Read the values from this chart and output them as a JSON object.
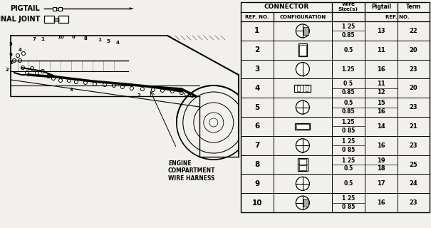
{
  "bg_color": "#f2f0ec",
  "rows": [
    {
      "ref": "1",
      "wire": [
        "1 25",
        "0.85"
      ],
      "pigtail": [
        "13",
        ""
      ],
      "term": "22"
    },
    {
      "ref": "2",
      "wire": [
        "0.5",
        ""
      ],
      "pigtail": [
        "11",
        ""
      ],
      "term": "20"
    },
    {
      "ref": "3",
      "wire": [
        "1.25",
        ""
      ],
      "pigtail": [
        "16",
        ""
      ],
      "term": "23"
    },
    {
      "ref": "4",
      "wire": [
        "0 5",
        "0.85"
      ],
      "pigtail": [
        "11",
        "12"
      ],
      "term": "20"
    },
    {
      "ref": "5",
      "wire": [
        "0.5",
        "0.85"
      ],
      "pigtail": [
        "15",
        "16"
      ],
      "term": "23"
    },
    {
      "ref": "6",
      "wire": [
        "1.25",
        "0 85"
      ],
      "pigtail": [
        "14",
        ""
      ],
      "term": "21"
    },
    {
      "ref": "7",
      "wire": [
        "1 25",
        "0 85"
      ],
      "pigtail": [
        "16",
        ""
      ],
      "term": "23"
    },
    {
      "ref": "8",
      "wire": [
        "1 25",
        "0.5"
      ],
      "pigtail": [
        "19",
        "18"
      ],
      "term": "25"
    },
    {
      "ref": "9",
      "wire": [
        "0.5",
        ""
      ],
      "pigtail": [
        "17",
        ""
      ],
      "term": "24"
    },
    {
      "ref": "10",
      "wire": [
        "1 25",
        "0 85"
      ],
      "pigtail": [
        "16",
        ""
      ],
      "term": "23"
    }
  ],
  "pigtail_label": "PIGTAIL",
  "terminal_joint_label": "TERMINAL JOINT",
  "engine_label": "ENGINE\nCOMPARTMENT\nWIRE HARNESS"
}
